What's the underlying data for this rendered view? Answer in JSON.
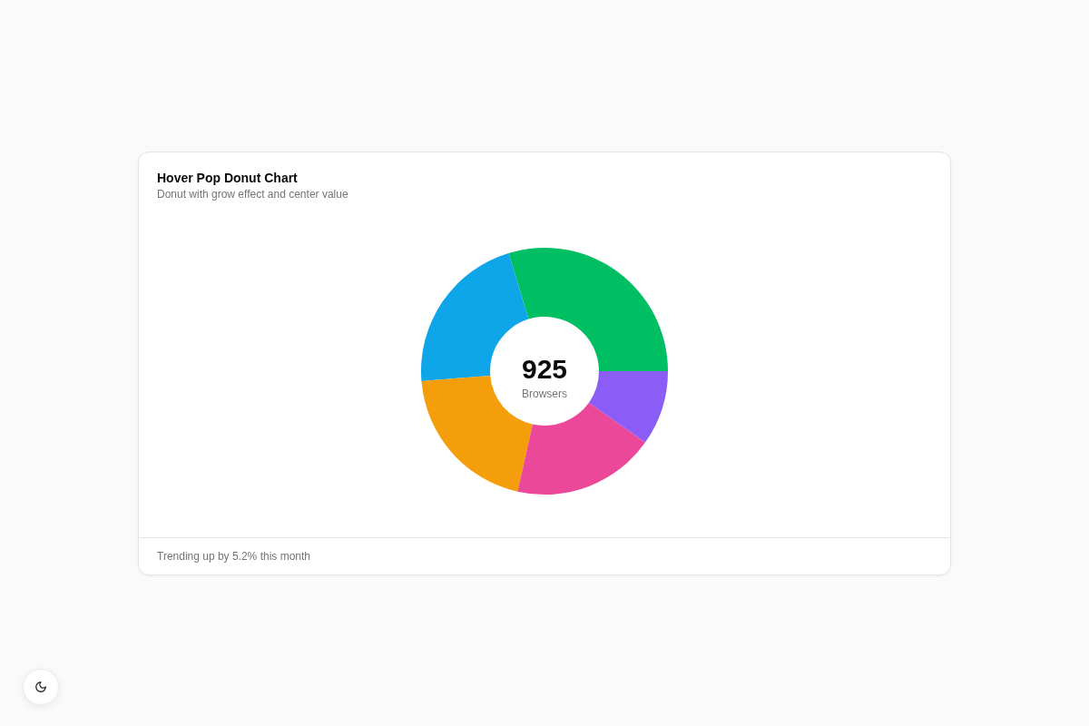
{
  "chart_data": {
    "type": "donut",
    "title": "Hover Pop Donut Chart",
    "subtitle": "Donut with grow effect and center value",
    "categories": [
      null,
      null,
      null,
      null,
      null
    ],
    "values": [
      29.7,
      21.6,
      20.2,
      18.7,
      9.8
    ],
    "colors": [
      "#00bf63",
      "#0ea5e9",
      "#f59e0b",
      "#ec4899",
      "#8b5cf6"
    ],
    "annotations": [
      "925",
      "Browsers",
      "Trending up by 5.2% this month"
    ]
  }
}
